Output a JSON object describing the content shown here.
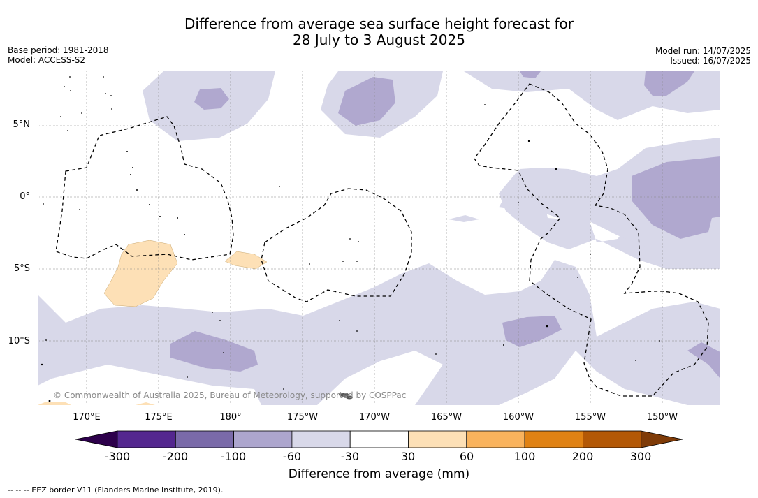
{
  "header": {
    "title_line1": "Difference from average sea surface height forecast for",
    "title_line2": "28 July to 3 August 2025",
    "base_period": "Base period: 1981-2018",
    "model": "Model: ACCESS-S2",
    "model_run": "Model run: 14/07/2025",
    "issued": "Issued: 16/07/2025"
  },
  "map": {
    "lat_labels": [
      "5°N",
      "0°",
      "5°S",
      "10°S"
    ],
    "lon_labels": [
      "170°E",
      "175°E",
      "180°",
      "175°W",
      "170°W",
      "165°W",
      "160°W",
      "155°W",
      "150°W"
    ],
    "copyright": "© Commonwealth of Australia 2025, Bureau of Meteorology, supported by COSPPac",
    "colors": {
      "band_m60_m30": "#d8d8e9",
      "band_m100_m60": "#b0a8cf",
      "band_30_60": "#fde0b6",
      "land": "#555555",
      "grid": "#888888"
    }
  },
  "colorbar": {
    "title": "Difference from average (mm)",
    "ticks": [
      "-300",
      "-200",
      "-100",
      "-60",
      "-30",
      "30",
      "60",
      "100",
      "200",
      "300"
    ],
    "segment_colors": [
      "#54278f",
      "#7a6aa9",
      "#ada6ce",
      "#d8d8e9",
      "#ffffff",
      "#fde0b6",
      "#f9b35d",
      "#e08214",
      "#b35806"
    ],
    "under_color": "#2d004b",
    "over_color": "#7f3b08"
  },
  "footnote": "--  --  -- EEZ border V11 (Flanders Marine Institute, 2019)."
}
